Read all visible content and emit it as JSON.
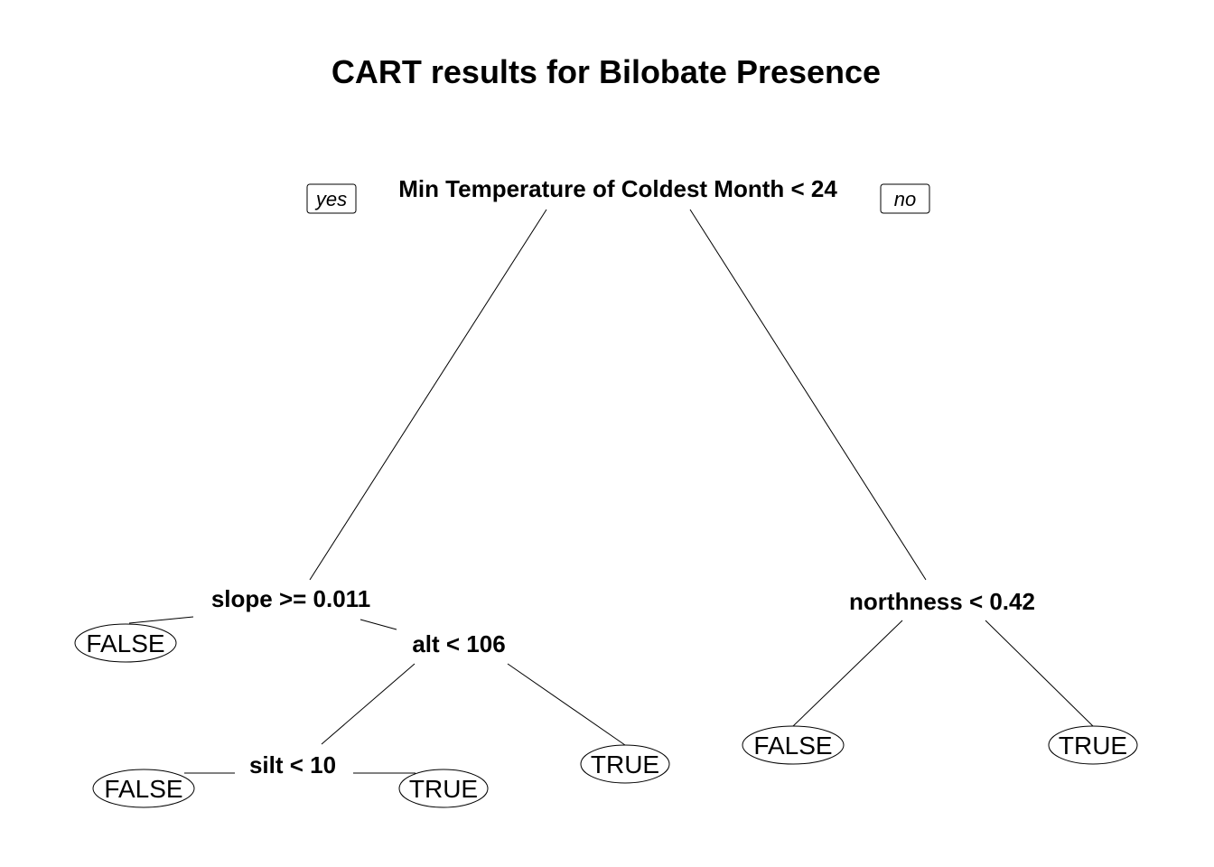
{
  "title": "CART results for Bilobate Presence",
  "root": {
    "split": "Min Temperature of Coldest Month < 24",
    "yes_label": "yes",
    "no_label": "no"
  },
  "nodes": {
    "slope": {
      "split": "slope >= 0.011"
    },
    "alt": {
      "split": "alt < 106"
    },
    "silt": {
      "split": "silt < 10"
    },
    "northness": {
      "split": "northness < 0.42"
    }
  },
  "leaves": {
    "slope_yes": "FALSE",
    "silt_yes": "FALSE",
    "silt_no": "TRUE",
    "alt_no": "TRUE",
    "northness_yes": "FALSE",
    "northness_no": "TRUE"
  }
}
